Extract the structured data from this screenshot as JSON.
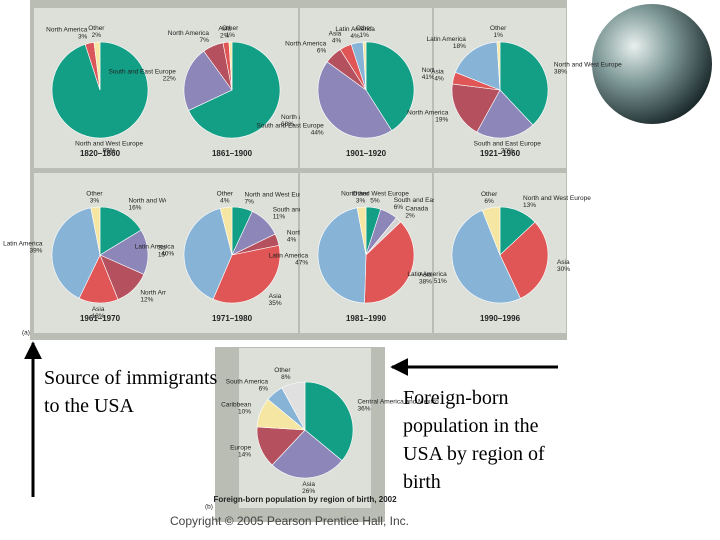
{
  "chart_data": [
    {
      "type": "pie",
      "title": "1820–1860",
      "categories": [
        "North and West Europe",
        "North America",
        "Other"
      ],
      "values": [
        95,
        3,
        2
      ],
      "value_labels": [
        "95%",
        "3%",
        "2%"
      ],
      "colors": [
        "#139e86",
        "#d9575a",
        "#f5e6a3"
      ]
    },
    {
      "type": "pie",
      "title": "1861–1900",
      "categories": [
        "North and West Europe",
        "South and East Europe",
        "North America",
        "Asia",
        "Other"
      ],
      "values": [
        68,
        22,
        7,
        2,
        1
      ],
      "value_labels": [
        "68%",
        "22%",
        "7%",
        "2%",
        "1%"
      ],
      "colors": [
        "#139e86",
        "#8d86b8",
        "#b5505e",
        "#e05555",
        "#f5e6a3"
      ]
    },
    {
      "type": "pie",
      "title": "1901–1920",
      "categories": [
        "North and West Europe",
        "South and East Europe",
        "North America",
        "Asia",
        "Latin America",
        "Other"
      ],
      "values": [
        41,
        44,
        6,
        4,
        4,
        1
      ],
      "value_labels": [
        "41%",
        "44%",
        "6%",
        "4%",
        "4%",
        "1%"
      ],
      "colors": [
        "#139e86",
        "#8d86b8",
        "#b5505e",
        "#e05555",
        "#86b3d6",
        "#f5e6a3"
      ]
    },
    {
      "type": "pie",
      "title": "1921–1960",
      "categories": [
        "North and West Europe",
        "South and East Europe",
        "North America",
        "Asia",
        "Latin America",
        "Other"
      ],
      "values": [
        38,
        20,
        19,
        4,
        18,
        1
      ],
      "value_labels": [
        "38%",
        "20%",
        "19%",
        "4%",
        "18%",
        "1%"
      ],
      "colors": [
        "#139e86",
        "#8d86b8",
        "#b5505e",
        "#e05555",
        "#86b3d6",
        "#f5e6a3"
      ]
    },
    {
      "type": "pie",
      "title": "1961–1970",
      "categories": [
        "North and West Europe",
        "South and East Europe",
        "North America",
        "Asia",
        "Latin America",
        "Other"
      ],
      "values": [
        16,
        15,
        12,
        13,
        39,
        3
      ],
      "value_labels": [
        "16%",
        "15%",
        "12%",
        "13%",
        "39%",
        "3%"
      ],
      "colors": [
        "#139e86",
        "#8d86b8",
        "#b5505e",
        "#e05555",
        "#86b3d6",
        "#f5e6a3"
      ]
    },
    {
      "type": "pie",
      "title": "1971–1980",
      "categories": [
        "North and West Europe",
        "South and East Europe",
        "North America",
        "Asia",
        "Latin America",
        "Other"
      ],
      "values": [
        7,
        11,
        4,
        35,
        40,
        4
      ],
      "value_labels": [
        "7%",
        "11%",
        "4%",
        "35%",
        "40%",
        "4%"
      ],
      "colors": [
        "#139e86",
        "#8d86b8",
        "#b5505e",
        "#e05555",
        "#86b3d6",
        "#f5e6a3"
      ]
    },
    {
      "type": "pie",
      "title": "1981–1990",
      "categories": [
        "North and West Europe",
        "South and East Europe",
        "Canada",
        "Asia",
        "Latin America",
        "Other"
      ],
      "values": [
        5,
        6,
        2,
        38,
        47,
        3
      ],
      "value_labels": [
        "5%",
        "6%",
        "2%",
        "38%",
        "47%",
        "3%"
      ],
      "colors": [
        "#139e86",
        "#8d86b8",
        "#d4d4d4",
        "#e05555",
        "#86b3d6",
        "#f5e6a3"
      ]
    },
    {
      "type": "pie",
      "title": "1990–1996",
      "categories": [
        "North and West Europe",
        "Asia",
        "Latin America",
        "Other"
      ],
      "values": [
        13,
        30,
        51,
        6
      ],
      "value_labels": [
        "13%",
        "30%",
        "51%",
        "6%"
      ],
      "colors": [
        "#139e86",
        "#e05555",
        "#86b3d6",
        "#f5e6a3"
      ]
    },
    {
      "type": "pie",
      "title": "Foreign-born population by region of birth, 2002",
      "categories": [
        "Central America and Mexico",
        "Asia",
        "Europe",
        "Caribbean",
        "South America",
        "Other"
      ],
      "values": [
        36,
        26,
        14,
        10,
        6,
        8
      ],
      "value_labels": [
        "36%",
        "26%",
        "14%",
        "10%",
        "6%",
        "8%"
      ],
      "colors": [
        "#139e86",
        "#8d86b8",
        "#b5505e",
        "#f5e6a3",
        "#86b3d6",
        "#e0e0e0"
      ]
    }
  ],
  "panel_labels": [
    "(a)",
    "(b)"
  ],
  "captions": {
    "left": "Source of immigrants to the USA",
    "right": "Foreign-born population in the USA by region of birth"
  },
  "copyright": "Copyright © 2005 Pearson Prentice Hall, Inc."
}
